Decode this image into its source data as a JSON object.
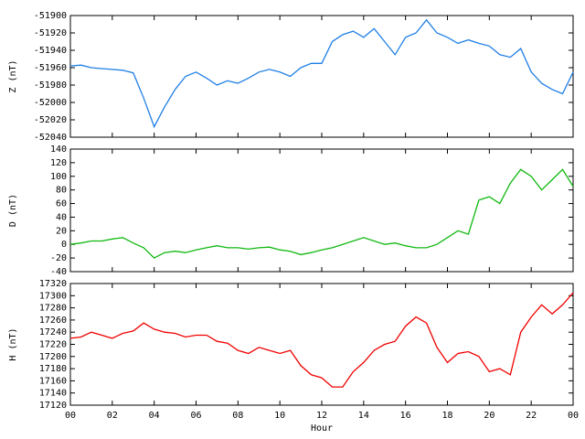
{
  "chart_data": [
    {
      "type": "line",
      "ylabel": "Z (nT)",
      "xlim": [
        0,
        24
      ],
      "ylim": [
        -52040,
        -51900
      ],
      "yticks": [
        -52040,
        -52020,
        -52000,
        -51980,
        -51960,
        -51940,
        -51920,
        -51900
      ],
      "series": [
        {
          "color": "#1f7fe6",
          "x": [
            0,
            0.5,
            1,
            1.5,
            2,
            2.5,
            3,
            3.5,
            4,
            4.5,
            5,
            5.5,
            6,
            6.5,
            7,
            7.5,
            8,
            8.5,
            9,
            9.5,
            10,
            10.5,
            11,
            11.5,
            12,
            12.5,
            13,
            13.5,
            14,
            14.5,
            15,
            15.5,
            16,
            16.5,
            17,
            17.5,
            18,
            18.5,
            19,
            19.5,
            20,
            20.5,
            21,
            21.5,
            22,
            22.5,
            23,
            23.5,
            24
          ],
          "values": [
            -51958,
            -51957,
            -51960,
            -51961,
            -51962,
            -51963,
            -51966,
            -51995,
            -52028,
            -52005,
            -51985,
            -51970,
            -51965,
            -51972,
            -51980,
            -51975,
            -51978,
            -51972,
            -51965,
            -51962,
            -51965,
            -51970,
            -51960,
            -51955,
            -51955,
            -51930,
            -51922,
            -51918,
            -51925,
            -51915,
            -51930,
            -51945,
            -51925,
            -51920,
            -51905,
            -51920,
            -51925,
            -51932,
            -51928,
            -51932,
            -51935,
            -51945,
            -51948,
            -51938,
            -51965,
            -51978,
            -51985,
            -51990,
            -51965
          ]
        }
      ]
    },
    {
      "type": "line",
      "ylabel": "D (nT)",
      "xlim": [
        0,
        24
      ],
      "ylim": [
        -40,
        140
      ],
      "yticks": [
        -40,
        -20,
        0,
        20,
        40,
        60,
        80,
        100,
        120,
        140
      ],
      "series": [
        {
          "color": "#10b810",
          "x": [
            0,
            0.5,
            1,
            1.5,
            2,
            2.5,
            3,
            3.5,
            4,
            4.5,
            5,
            5.5,
            6,
            6.5,
            7,
            7.5,
            8,
            8.5,
            9,
            9.5,
            10,
            10.5,
            11,
            11.5,
            12,
            12.5,
            13,
            13.5,
            14,
            14.5,
            15,
            15.5,
            16,
            16.5,
            17,
            17.5,
            18,
            18.5,
            19,
            19.5,
            20,
            20.5,
            21,
            21.5,
            22,
            22.5,
            23,
            23.5,
            24
          ],
          "values": [
            0,
            2,
            5,
            5,
            8,
            10,
            2,
            -5,
            -20,
            -12,
            -10,
            -12,
            -8,
            -5,
            -2,
            -5,
            -5,
            -7,
            -5,
            -4,
            -8,
            -10,
            -15,
            -12,
            -8,
            -5,
            0,
            5,
            10,
            5,
            0,
            2,
            -2,
            -5,
            -5,
            0,
            10,
            20,
            15,
            65,
            70,
            60,
            90,
            110,
            100,
            80,
            95,
            110,
            85
          ]
        }
      ]
    },
    {
      "type": "line",
      "ylabel": "H (nT)",
      "xlabel": "Hour",
      "xlim": [
        0,
        24
      ],
      "ylim": [
        17120,
        17320
      ],
      "yticks": [
        17120,
        17140,
        17160,
        17180,
        17200,
        17220,
        17240,
        17260,
        17280,
        17300,
        17320
      ],
      "xticks": [
        {
          "value": 0,
          "label": "00"
        },
        {
          "value": 2,
          "label": "02"
        },
        {
          "value": 4,
          "label": "04"
        },
        {
          "value": 6,
          "label": "06"
        },
        {
          "value": 8,
          "label": "08"
        },
        10,
        12,
        14,
        16,
        18,
        20,
        22,
        {
          "value": 24,
          "label": "00"
        }
      ],
      "series": [
        {
          "color": "#f00000",
          "x": [
            0,
            0.5,
            1,
            1.5,
            2,
            2.5,
            3,
            3.5,
            4,
            4.5,
            5,
            5.5,
            6,
            6.5,
            7,
            7.5,
            8,
            8.5,
            9,
            9.5,
            10,
            10.5,
            11,
            11.5,
            12,
            12.5,
            13,
            13.5,
            14,
            14.5,
            15,
            15.5,
            16,
            16.5,
            17,
            17.5,
            18,
            18.5,
            19,
            19.5,
            20,
            20.5,
            21,
            21.5,
            22,
            22.5,
            23,
            23.5,
            24
          ],
          "values": [
            17230,
            17232,
            17240,
            17235,
            17230,
            17238,
            17242,
            17255,
            17245,
            17240,
            17238,
            17232,
            17235,
            17235,
            17225,
            17222,
            17210,
            17205,
            17215,
            17210,
            17205,
            17210,
            17185,
            17170,
            17165,
            17150,
            17150,
            17175,
            17190,
            17210,
            17220,
            17225,
            17250,
            17265,
            17255,
            17215,
            17190,
            17205,
            17208,
            17200,
            17175,
            17180,
            17170,
            17240,
            17265,
            17285,
            17270,
            17285,
            17305
          ]
        }
      ]
    }
  ]
}
